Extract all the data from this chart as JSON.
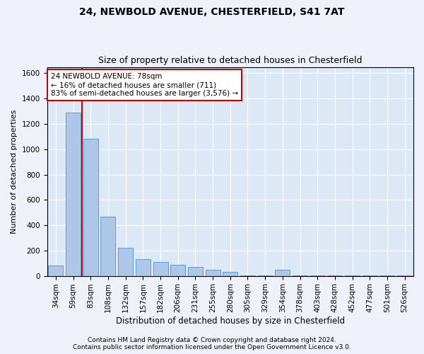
{
  "title1": "24, NEWBOLD AVENUE, CHESTERFIELD, S41 7AT",
  "title2": "Size of property relative to detached houses in Chesterfield",
  "xlabel": "Distribution of detached houses by size in Chesterfield",
  "ylabel": "Number of detached properties",
  "categories": [
    "34sqm",
    "59sqm",
    "83sqm",
    "108sqm",
    "132sqm",
    "157sqm",
    "182sqm",
    "206sqm",
    "231sqm",
    "255sqm",
    "280sqm",
    "305sqm",
    "329sqm",
    "354sqm",
    "378sqm",
    "403sqm",
    "428sqm",
    "452sqm",
    "477sqm",
    "501sqm",
    "526sqm"
  ],
  "values": [
    80,
    1290,
    1080,
    470,
    220,
    130,
    110,
    90,
    70,
    50,
    30,
    5,
    5,
    50,
    5,
    5,
    5,
    5,
    5,
    5,
    5
  ],
  "bar_color": "#aec6e8",
  "bar_edge_color": "#5a9fd4",
  "vline_color": "#cc0000",
  "vline_x_index": 2,
  "annotation_line1": "24 NEWBOLD AVENUE: 78sqm",
  "annotation_line2": "← 16% of detached houses are smaller (711)",
  "annotation_line3": "83% of semi-detached houses are larger (3,576) →",
  "annotation_box_color": "#ffffff",
  "annotation_box_edge": "#cc0000",
  "ylim": [
    0,
    1650
  ],
  "yticks": [
    0,
    200,
    400,
    600,
    800,
    1000,
    1200,
    1400,
    1600
  ],
  "footer1": "Contains HM Land Registry data © Crown copyright and database right 2024.",
  "footer2": "Contains public sector information licensed under the Open Government Licence v3.0.",
  "bg_color": "#eef2f8",
  "plot_bg_color": "#dce8f5",
  "grid_color": "#ffffff",
  "title1_fontsize": 10,
  "title2_fontsize": 9,
  "xlabel_fontsize": 8.5,
  "ylabel_fontsize": 8,
  "tick_fontsize": 7.5,
  "annotation_fontsize": 7.5,
  "footer_fontsize": 6.5
}
